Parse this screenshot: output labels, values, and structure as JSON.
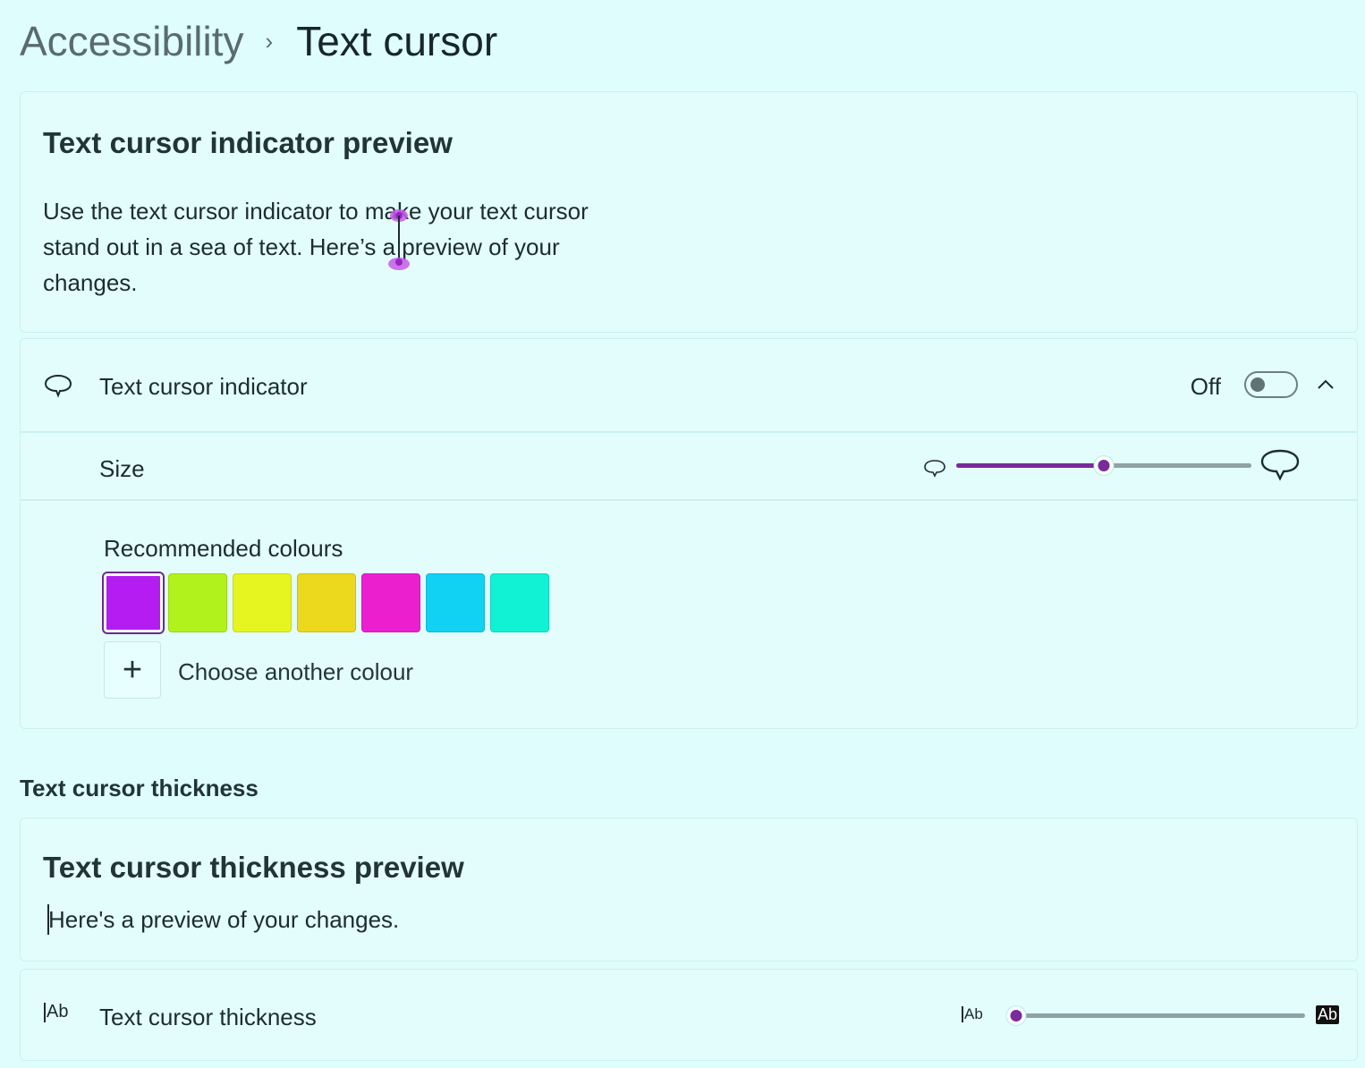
{
  "breadcrumb": {
    "parent": "Accessibility",
    "separator": "›",
    "current": "Text cursor"
  },
  "indicator_preview": {
    "title": "Text cursor indicator preview",
    "text": "Use the text cursor indicator to make your text cursor stand out in a sea of text. Here’s a preview of your changes."
  },
  "indicator": {
    "label": "Text cursor indicator",
    "icon": "speech-bubble-icon",
    "toggle_state": "Off",
    "toggle_on": false,
    "expanded": true,
    "size_label": "Size",
    "size_value_fraction": 0.5,
    "colours_heading": "Recommended colours",
    "colours": [
      "#b51cf2",
      "#b1f21c",
      "#e6f51f",
      "#ecd81d",
      "#ec1fcf",
      "#11d2f2",
      "#11f2d5"
    ],
    "selected_colour_index": 0,
    "add_colour_icon": "plus-icon",
    "add_colour_label": "Choose another colour"
  },
  "thickness_section": {
    "heading": "Text cursor thickness",
    "preview_title": "Text cursor thickness preview",
    "preview_text": "Here's a preview of your changes.",
    "label": "Text cursor thickness",
    "icon": "text-cursor-ab-icon",
    "icon_text": "Ab",
    "slider_value_fraction": 0.0
  },
  "colors": {
    "accent": "#7a2a99",
    "background": "#dffdfd",
    "card": "#e3fdfd"
  }
}
